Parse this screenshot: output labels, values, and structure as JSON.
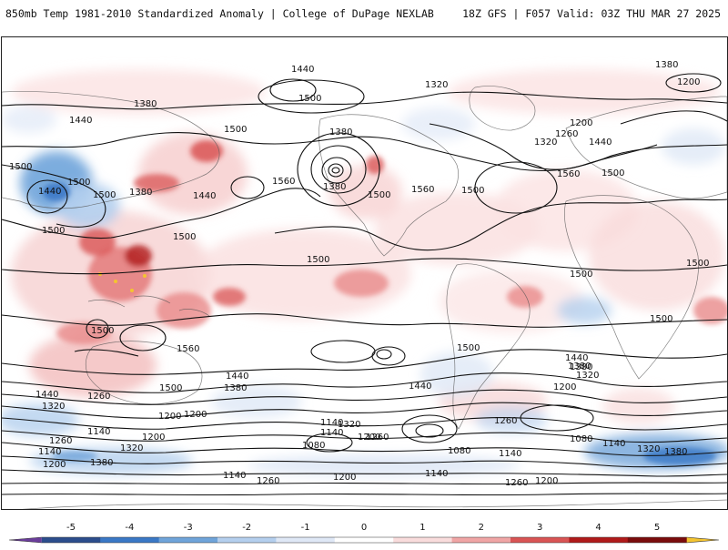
{
  "header": {
    "title": "850mb Temp 1981-2010 Standardized Anomaly | College of DuPage NEXLAB",
    "run_info": "18Z GFS | F057 Valid: 03Z THU MAR 27 2025"
  },
  "colorbar": {
    "ticks": [
      "-5",
      "-4",
      "-3",
      "-2",
      "-1",
      "0",
      "1",
      "2",
      "3",
      "4",
      "5"
    ],
    "colors": [
      "#6a3d9a",
      "#2c4d8c",
      "#3a78c6",
      "#6fa4da",
      "#b4cfee",
      "#dfe8f6",
      "#ffffff",
      "#f9dcdc",
      "#f0a5a5",
      "#d95454",
      "#b01a1a",
      "#7a0c0c",
      "#f4c430"
    ]
  },
  "contour_labels": [
    {
      "text": "1440"
    },
    {
      "text": "1380"
    },
    {
      "text": "1200"
    },
    {
      "text": "1320"
    },
    {
      "text": "1500"
    },
    {
      "text": "1380"
    },
    {
      "text": "1440"
    },
    {
      "text": "1500"
    },
    {
      "text": "1380"
    },
    {
      "text": "1320"
    },
    {
      "text": "1260"
    },
    {
      "text": "1200"
    },
    {
      "text": "1440"
    },
    {
      "text": "1560"
    },
    {
      "text": "1500"
    },
    {
      "text": "1440"
    },
    {
      "text": "1500"
    },
    {
      "text": "1500"
    },
    {
      "text": "1500"
    },
    {
      "text": "1380"
    },
    {
      "text": "1440"
    },
    {
      "text": "1560"
    },
    {
      "text": "1380"
    },
    {
      "text": "1500"
    },
    {
      "text": "1560"
    },
    {
      "text": "1500"
    },
    {
      "text": "1500"
    },
    {
      "text": "1500"
    },
    {
      "text": "1500"
    },
    {
      "text": "1500"
    },
    {
      "text": "1500"
    },
    {
      "text": "1500"
    },
    {
      "text": "1500"
    },
    {
      "text": "1560"
    },
    {
      "text": "1440"
    },
    {
      "text": "1380"
    },
    {
      "text": "1500"
    },
    {
      "text": "1440"
    },
    {
      "text": "1380"
    },
    {
      "text": "1500"
    },
    {
      "text": "1440"
    },
    {
      "text": "1320"
    },
    {
      "text": "1260"
    },
    {
      "text": "1200"
    },
    {
      "text": "1440"
    },
    {
      "text": "1380"
    },
    {
      "text": "1320"
    },
    {
      "text": "1200"
    },
    {
      "text": "1260"
    },
    {
      "text": "1320"
    },
    {
      "text": "1200"
    },
    {
      "text": "1140"
    },
    {
      "text": "1080"
    },
    {
      "text": "1080"
    },
    {
      "text": "1140"
    },
    {
      "text": "1080"
    },
    {
      "text": "1140"
    },
    {
      "text": "1320"
    },
    {
      "text": "1380"
    },
    {
      "text": "1260"
    },
    {
      "text": "1140"
    },
    {
      "text": "1200"
    },
    {
      "text": "1320"
    },
    {
      "text": "1140"
    },
    {
      "text": "1200"
    },
    {
      "text": "1380"
    },
    {
      "text": "1140"
    },
    {
      "text": "1260"
    },
    {
      "text": "1140"
    },
    {
      "text": "1260"
    },
    {
      "text": "1200"
    },
    {
      "text": "1140"
    },
    {
      "text": "1200"
    },
    {
      "text": "1260"
    },
    {
      "text": "1200"
    }
  ]
}
